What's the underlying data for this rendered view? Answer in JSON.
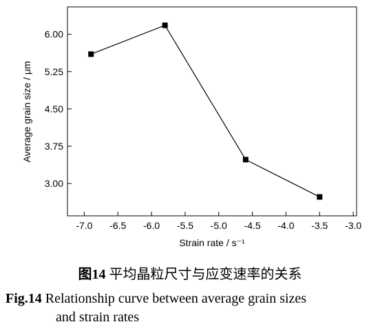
{
  "chart_data": {
    "type": "line",
    "x": [
      -6.9,
      -5.8,
      -4.6,
      -3.5
    ],
    "series": [
      {
        "values": [
          5.6,
          6.18,
          3.48,
          2.73
        ]
      }
    ],
    "xlabel": "Strain rate / s⁻¹",
    "ylabel": "Average grain size / μm",
    "xlim": [
      -7.25,
      -2.95
    ],
    "ylim": [
      2.35,
      6.55
    ],
    "xticks": [
      -7.0,
      -6.5,
      -6.0,
      -5.5,
      -5.0,
      -4.5,
      -4.0,
      -3.5,
      -3.0
    ],
    "xtick_labels": [
      "-7.0",
      "-6.5",
      "-6.0",
      "-5.5",
      "-5.0",
      "-4.5",
      "-4.0",
      "-3.5",
      "-3.0"
    ],
    "yticks": [
      3.0,
      3.75,
      4.5,
      5.25,
      6.0
    ],
    "ytick_labels": [
      "3.00",
      "3.75",
      "4.50",
      "5.25",
      "6.00"
    ],
    "marker": "square",
    "grid": false,
    "legend": "none",
    "line_color": "#000000"
  },
  "caption": {
    "cn_label": "图14",
    "cn_text": " 平均晶粒尺寸与应变速率的关系",
    "en_label": "Fig.14",
    "en_line1": " Relationship curve between average grain sizes",
    "en_line2": "and strain rates"
  }
}
